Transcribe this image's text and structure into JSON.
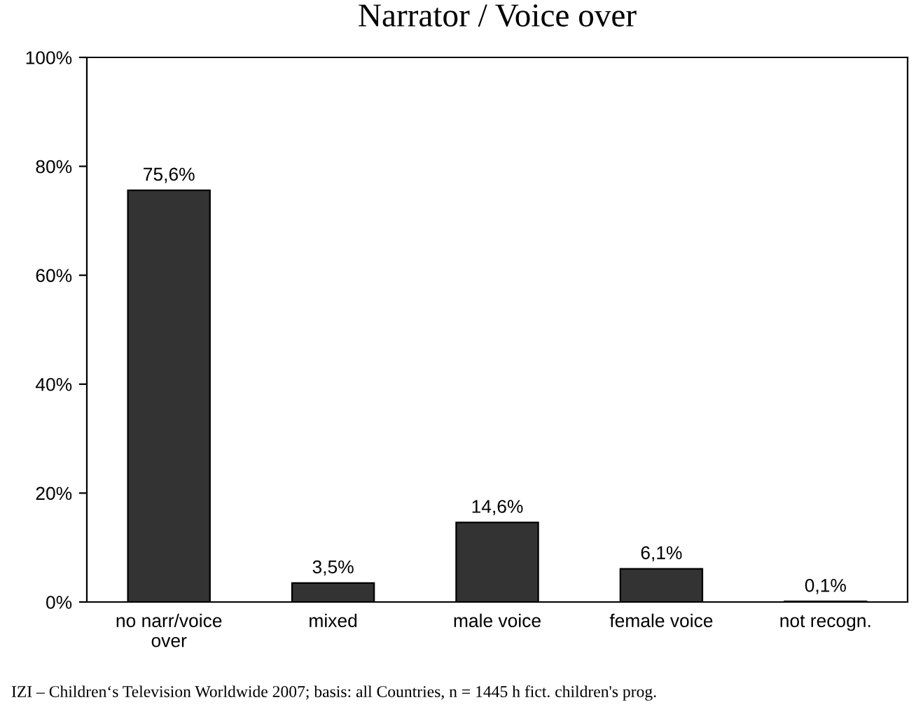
{
  "chart_data": {
    "type": "bar",
    "title": "Narrator / Voice over",
    "categories": [
      "no narr/voice\nover",
      "mixed",
      "male voice",
      "female voice",
      "not recogn."
    ],
    "values": [
      75.6,
      3.5,
      14.6,
      6.1,
      0.1
    ],
    "value_labels": [
      "75,6%",
      "3,5%",
      "14,6%",
      "6,1%",
      "0,1%"
    ],
    "color": "#333333",
    "ylim": [
      0,
      100
    ],
    "yticks": [
      {
        "value": 0,
        "label": "0%"
      },
      {
        "value": 20,
        "label": "20%"
      },
      {
        "value": 40,
        "label": "40%"
      },
      {
        "value": 60,
        "label": "60%"
      },
      {
        "value": 80,
        "label": "80%"
      },
      {
        "value": 100,
        "label": "100%"
      }
    ],
    "grid": false,
    "annotations": [
      "IZI – Children‘s Television Worldwide 2007; basis: all Countries, n = 1445 h fict. children's prog."
    ]
  }
}
